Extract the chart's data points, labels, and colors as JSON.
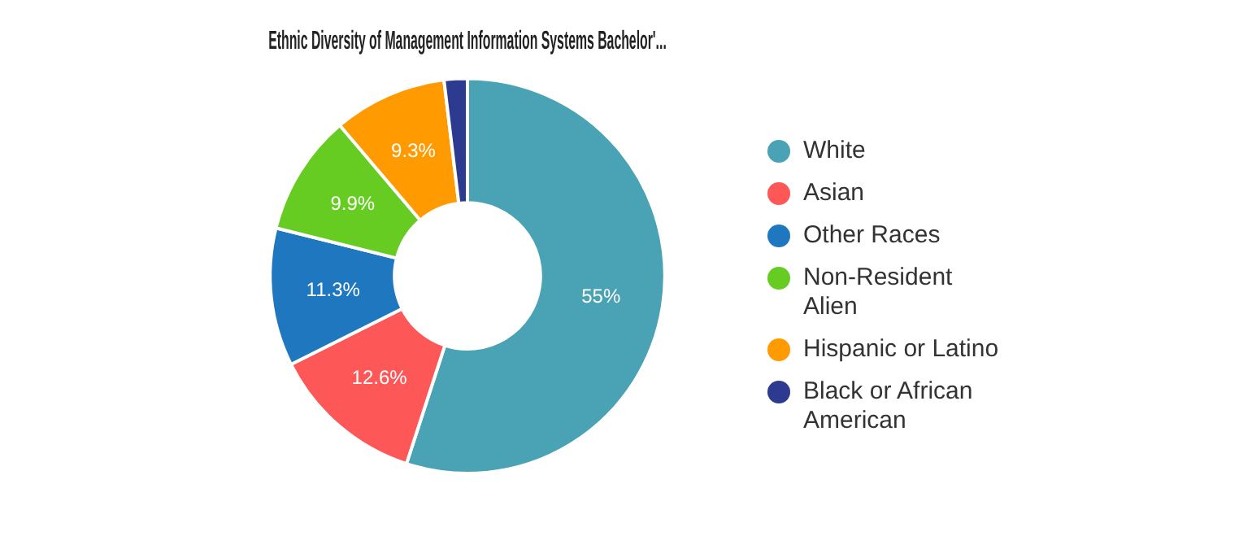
{
  "chart_data": {
    "type": "donut",
    "title": "Ethnic Diversity of Management Information Systems Bachelor'...",
    "categories": [
      "White",
      "Asian",
      "Other Races",
      "Non-Resident Alien",
      "Hispanic or Latino",
      "Black or African American"
    ],
    "values": [
      55,
      12.6,
      11.3,
      9.9,
      9.3,
      1.9
    ],
    "colors": [
      "#4aa3b5",
      "#fe5757",
      "#1f77c0",
      "#66cc22",
      "#ff9a00",
      "#2c3a8f"
    ],
    "value_labels": [
      "55%",
      "12.6%",
      "11.3%",
      "9.9%",
      "9.3%",
      null
    ],
    "legend": "right"
  }
}
